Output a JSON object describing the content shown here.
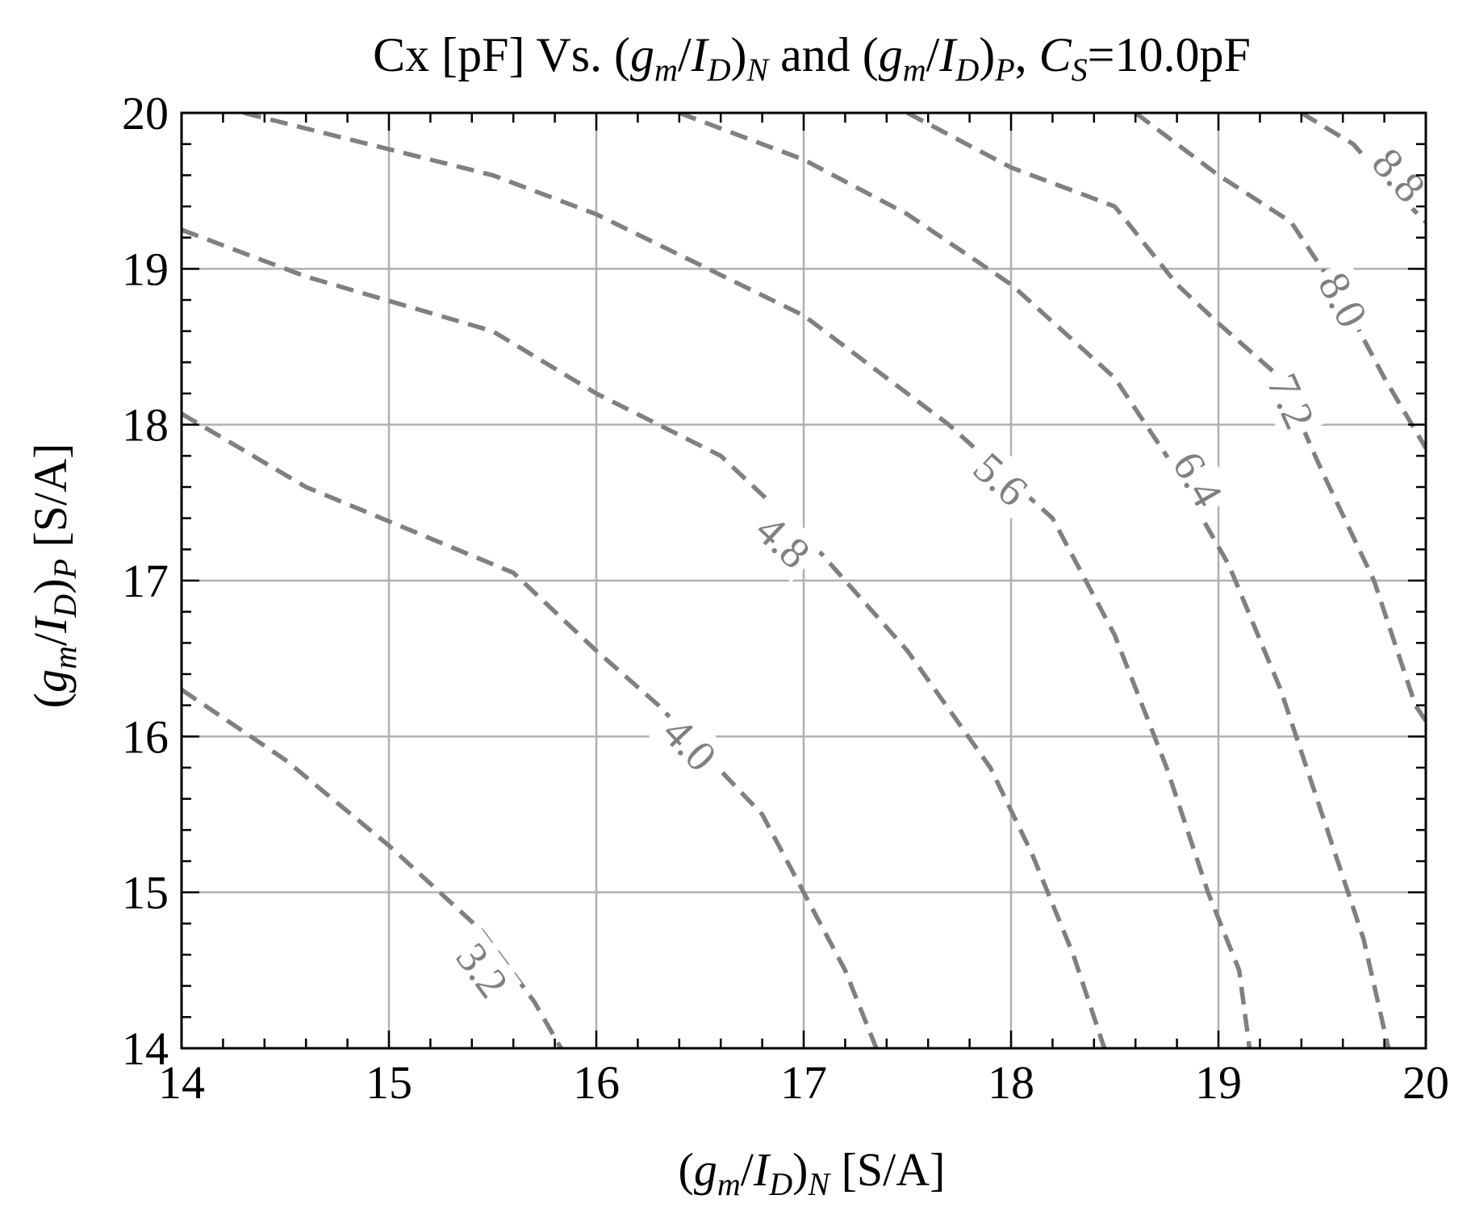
{
  "chart_data": {
    "type": "contour",
    "title_parts": {
      "prefix": "Cx [pF] Vs. (",
      "g": "g",
      "m": "m",
      "slash": "/",
      "I": "I",
      "D": "D",
      "close": ")",
      "N": "N",
      "and": " and (",
      "P": "P",
      "comma": ", ",
      "C": "C",
      "S": "S",
      "suffix": "=10.0pF"
    },
    "xlabel_parts": {
      "open": "(",
      "g": "g",
      "m": "m",
      "slash": "/",
      "I": "I",
      "D": "D",
      "close": ")",
      "sub": "N",
      "unit": " [S/A]"
    },
    "ylabel_parts": {
      "open": "(",
      "g": "g",
      "m": "m",
      "slash": "/",
      "I": "I",
      "D": "D",
      "close": ")",
      "sub": "P",
      "unit": " [S/A]"
    },
    "xlim": [
      14,
      20
    ],
    "ylim": [
      14,
      20
    ],
    "xticks": [
      14,
      15,
      16,
      17,
      18,
      19,
      20
    ],
    "yticks": [
      14,
      15,
      16,
      17,
      18,
      19,
      20
    ],
    "xtick_labels": [
      "14",
      "15",
      "16",
      "17",
      "18",
      "19",
      "20"
    ],
    "ytick_labels": [
      "14",
      "15",
      "16",
      "17",
      "18",
      "19",
      "20"
    ],
    "grid": true,
    "line_color": "#808080",
    "grid_color": "#b0b0b0",
    "line_style": "dashed",
    "contours": [
      {
        "level": 3.2,
        "label": "3.2",
        "label_at": [
          15.45,
          14.5
        ],
        "points": [
          [
            14,
            16.3
          ],
          [
            14.5,
            15.85
          ],
          [
            15.0,
            15.3
          ],
          [
            15.45,
            14.75
          ],
          [
            15.7,
            14.3
          ],
          [
            15.83,
            14.0
          ]
        ]
      },
      {
        "level": 4.0,
        "label": "4.0",
        "label_at": [
          16.45,
          15.95
        ],
        "points": [
          [
            14,
            18.07
          ],
          [
            14.6,
            17.6
          ],
          [
            15.6,
            17.05
          ],
          [
            16.0,
            16.55
          ],
          [
            16.3,
            16.2
          ],
          [
            16.8,
            15.5
          ],
          [
            17.0,
            15.0
          ],
          [
            17.2,
            14.5
          ],
          [
            17.35,
            14.0
          ]
        ]
      },
      {
        "level": 4.8,
        "label": "4.8",
        "label_at": [
          16.9,
          17.25
        ],
        "points": [
          [
            14,
            19.25
          ],
          [
            14.6,
            18.95
          ],
          [
            15.5,
            18.6
          ],
          [
            16.0,
            18.2
          ],
          [
            16.6,
            17.8
          ],
          [
            17.0,
            17.3
          ],
          [
            17.5,
            16.55
          ],
          [
            17.9,
            15.8
          ],
          [
            18.1,
            15.25
          ],
          [
            18.3,
            14.6
          ],
          [
            18.45,
            14.0
          ]
        ]
      },
      {
        "level": 5.6,
        "label": "5.6",
        "label_at": [
          17.95,
          17.65
        ],
        "points": [
          [
            14.3,
            20.0
          ],
          [
            15.5,
            19.6
          ],
          [
            16.0,
            19.35
          ],
          [
            17.0,
            18.7
          ],
          [
            17.7,
            18.0
          ],
          [
            18.2,
            17.4
          ],
          [
            18.5,
            16.65
          ],
          [
            18.75,
            15.8
          ],
          [
            18.95,
            15.0
          ],
          [
            19.1,
            14.5
          ],
          [
            19.15,
            14.0
          ]
        ]
      },
      {
        "level": 6.4,
        "label": "6.4",
        "label_at": [
          18.9,
          17.65
        ],
        "points": [
          [
            16.4,
            20.0
          ],
          [
            17.0,
            19.7
          ],
          [
            17.5,
            19.35
          ],
          [
            18.0,
            18.9
          ],
          [
            18.5,
            18.3
          ],
          [
            18.75,
            17.8
          ],
          [
            19.05,
            17.1
          ],
          [
            19.3,
            16.3
          ],
          [
            19.5,
            15.5
          ],
          [
            19.7,
            14.7
          ],
          [
            19.82,
            14.0
          ]
        ]
      },
      {
        "level": 7.2,
        "label": "7.2",
        "label_at": [
          19.35,
          18.15
        ],
        "points": [
          [
            17.5,
            20.0
          ],
          [
            18.0,
            19.65
          ],
          [
            18.5,
            19.4
          ],
          [
            18.8,
            18.9
          ],
          [
            19.0,
            18.65
          ],
          [
            19.3,
            18.3
          ],
          [
            19.5,
            17.7
          ],
          [
            19.75,
            17.0
          ],
          [
            19.95,
            16.2
          ],
          [
            20.0,
            16.1
          ]
        ]
      },
      {
        "level": 8.0,
        "label": "8.0",
        "label_at": [
          19.6,
          18.8
        ],
        "points": [
          [
            18.6,
            20.0
          ],
          [
            19.0,
            19.6
          ],
          [
            19.35,
            19.3
          ],
          [
            19.6,
            18.8
          ],
          [
            19.8,
            18.3
          ],
          [
            20.0,
            17.85
          ]
        ]
      },
      {
        "level": 8.8,
        "label": "8.8",
        "label_at": [
          19.87,
          19.6
        ],
        "points": [
          [
            19.4,
            20.0
          ],
          [
            19.65,
            19.8
          ],
          [
            19.85,
            19.5
          ],
          [
            20.0,
            19.3
          ]
        ]
      }
    ]
  }
}
